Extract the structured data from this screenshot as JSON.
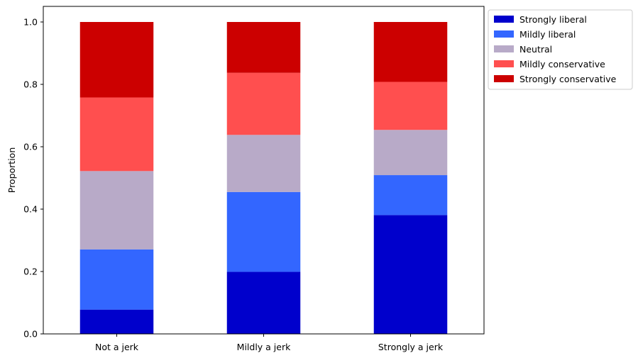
{
  "chart_data": {
    "type": "bar",
    "stacked": true,
    "categories": [
      "Not a jerk",
      "Mildly a jerk",
      "Strongly a jerk"
    ],
    "series": [
      {
        "name": "Strongly liberal",
        "color": "#0000cc",
        "values": [
          0.078,
          0.199,
          0.381
        ]
      },
      {
        "name": "Mildly liberal",
        "color": "#3366ff",
        "values": [
          0.193,
          0.256,
          0.128
        ]
      },
      {
        "name": "Neutral",
        "color": "#b8aac8",
        "values": [
          0.251,
          0.183,
          0.145
        ]
      },
      {
        "name": "Mildly conservative",
        "color": "#ff4f4f",
        "values": [
          0.236,
          0.199,
          0.154
        ]
      },
      {
        "name": "Strongly conservative",
        "color": "#cc0000",
        "values": [
          0.242,
          0.163,
          0.192
        ]
      }
    ],
    "title": "",
    "xlabel": "",
    "ylabel": "Proportion",
    "ylim": [
      0,
      1.05
    ],
    "yticks": [
      0.0,
      0.2,
      0.4,
      0.6,
      0.8,
      1.0
    ],
    "ytick_labels": [
      "0.0",
      "0.2",
      "0.4",
      "0.6",
      "0.8",
      "1.0"
    ],
    "grid": false,
    "legend_position": "outside upper right"
  }
}
